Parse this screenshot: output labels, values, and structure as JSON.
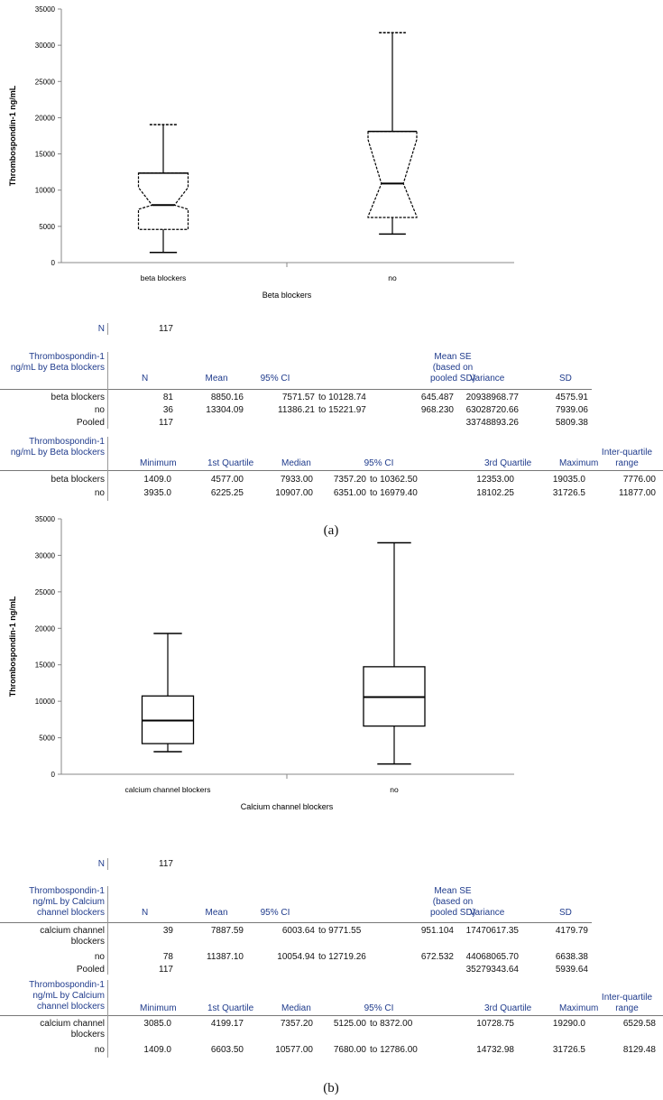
{
  "chart_data": [
    {
      "type": "box",
      "panel": "a",
      "ylabel": "Thrombospondin-1  ng/mL",
      "xlabel": "Beta blockers",
      "ylim": [
        0,
        35000
      ],
      "yticks": [
        0,
        5000,
        10000,
        15000,
        20000,
        25000,
        30000,
        35000
      ],
      "notched": true,
      "categories": [
        "beta blockers",
        "no"
      ],
      "boxes": [
        {
          "min": 1409.0,
          "q1": 4577.0,
          "median": 7933.0,
          "q3": 12353.0,
          "max": 19035.0,
          "ci": [
            7357.2,
            10362.5
          ]
        },
        {
          "min": 3935.0,
          "q1": 6225.25,
          "median": 10907.0,
          "q3": 18102.25,
          "max": 31726.5,
          "ci": [
            6351.0,
            16979.4
          ]
        }
      ]
    },
    {
      "type": "box",
      "panel": "b",
      "ylabel": "Thrombospondin-1  ng/mL",
      "xlabel": "Calcium channel blockers",
      "ylim": [
        0,
        35000
      ],
      "yticks": [
        0,
        5000,
        10000,
        15000,
        20000,
        25000,
        30000,
        35000
      ],
      "notched": false,
      "categories": [
        "calcium channel blockers",
        "no"
      ],
      "boxes": [
        {
          "min": 3085.0,
          "q1": 4199.17,
          "median": 7357.2,
          "q3": 10728.75,
          "max": 19290.0
        },
        {
          "min": 1409.0,
          "q1": 6603.5,
          "median": 10577.0,
          "q3": 14732.98,
          "max": 31726.5
        }
      ]
    }
  ],
  "tables": [
    {
      "n_label": "N",
      "n_value": "117",
      "t1": {
        "head": [
          "Thrombospondin-1 ng/mL by Beta blockers",
          "N",
          "Mean",
          "95% CI",
          "Mean SE (based on pooled SD)",
          "Variance",
          "SD"
        ],
        "rows": [
          [
            "beta blockers",
            "81",
            "8850.16",
            "7571.57",
            "to 10128.74",
            "645.487",
            "20938968.77",
            "4575.91"
          ],
          [
            "no",
            "36",
            "13304.09",
            "11386.21",
            "to 15221.97",
            "968.230",
            "63028720.66",
            "7939.06"
          ],
          [
            "Pooled",
            "117",
            "",
            "",
            "",
            "",
            "33748893.26",
            "5809.38"
          ]
        ]
      },
      "t2": {
        "head": [
          "Thrombospondin-1 ng/mL by Beta blockers",
          "Minimum",
          "1st Quartile",
          "Median",
          "95% CI",
          "3rd Quartile",
          "Maximum",
          "Inter-quartile range"
        ],
        "rows": [
          [
            "beta blockers",
            "1409.0",
            "4577.00",
            "7933.00",
            "7357.20",
            "to 10362.50",
            "12353.00",
            "19035.0",
            "7776.00"
          ],
          [
            "no",
            "3935.0",
            "6225.25",
            "10907.00",
            "6351.00",
            "to 16979.40",
            "18102.25",
            "31726.5",
            "11877.00"
          ]
        ]
      },
      "caption": "(a)"
    },
    {
      "n_label": "N",
      "n_value": "117",
      "t1": {
        "head": [
          "Thrombospondin-1 ng/mL by Calcium channel blockers",
          "N",
          "Mean",
          "95% CI",
          "Mean SE (based on pooled SD)",
          "Variance",
          "SD"
        ],
        "rows": [
          [
            "calcium channel blockers",
            "39",
            "7887.59",
            "6003.64",
            "to 9771.55",
            "951.104",
            "17470617.35",
            "4179.79"
          ],
          [
            "no",
            "78",
            "11387.10",
            "10054.94",
            "to 12719.26",
            "672.532",
            "44068065.70",
            "6638.38"
          ],
          [
            "Pooled",
            "117",
            "",
            "",
            "",
            "",
            "35279343.64",
            "5939.64"
          ]
        ]
      },
      "t2": {
        "head": [
          "Thrombospondin-1 ng/mL by Calcium channel blockers",
          "Minimum",
          "1st Quartile",
          "Median",
          "95% CI",
          "3rd Quartile",
          "Maximum",
          "Inter-quartile range"
        ],
        "rows": [
          [
            "calcium channel blockers",
            "3085.0",
            "4199.17",
            "7357.20",
            "5125.00",
            "to 8372.00",
            "10728.75",
            "19290.0",
            "6529.58"
          ],
          [
            "no",
            "1409.0",
            "6603.50",
            "10577.00",
            "7680.00",
            "to 12786.00",
            "14732.98",
            "31726.5",
            "8129.48"
          ]
        ]
      },
      "caption": "(b)"
    }
  ]
}
